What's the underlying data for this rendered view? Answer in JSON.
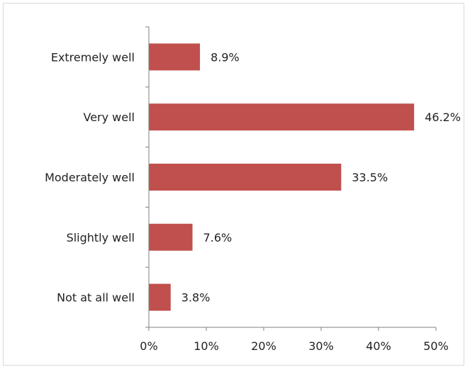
{
  "chart_data": {
    "type": "bar",
    "orientation": "horizontal",
    "title": "",
    "xlabel": "",
    "ylabel": "",
    "categories": [
      "Extremely well",
      "Very well",
      "Moderately well",
      "Slightly well",
      "Not at all well"
    ],
    "values": [
      8.9,
      46.2,
      33.5,
      7.6,
      3.8
    ],
    "value_labels": [
      "8.9%",
      "46.2%",
      "33.5%",
      "7.6%",
      "3.8%"
    ],
    "xlim": [
      0,
      50
    ],
    "x_ticks": [
      0,
      10,
      20,
      30,
      40,
      50
    ],
    "x_tick_labels": [
      "0%",
      "10%",
      "20%",
      "30%",
      "40%",
      "50%"
    ],
    "bar_color": "#c0504d",
    "grid": false,
    "legend": "none"
  }
}
